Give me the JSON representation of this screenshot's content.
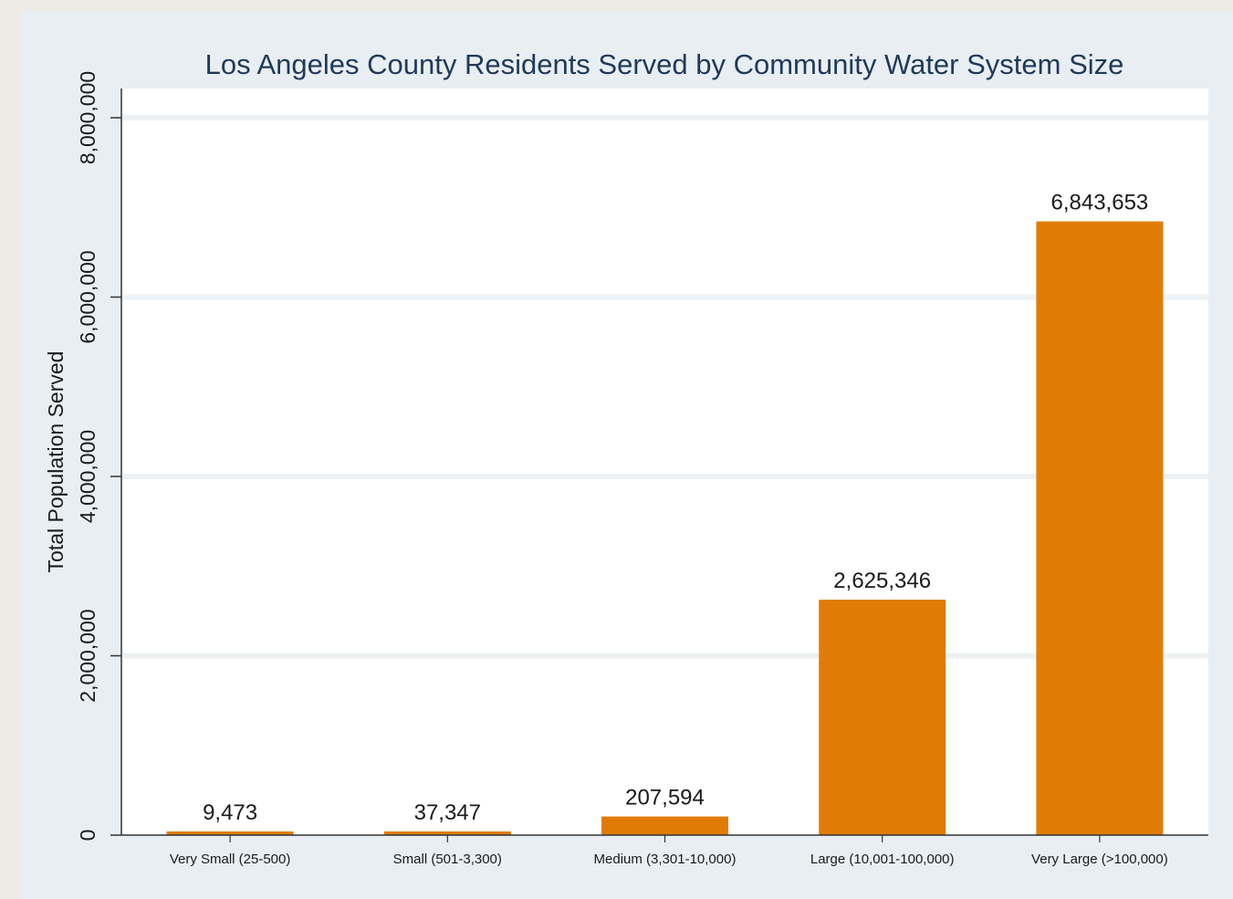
{
  "chart_data": {
    "type": "bar",
    "title": "Los Angeles County Residents Served by Community Water System Size",
    "xlabel": "",
    "ylabel": "Total Population Served",
    "categories": [
      "Very Small (25-500)",
      "Small (501-3,300)",
      "Medium (3,301-10,000)",
      "Large (10,001-100,000)",
      "Very Large (>100,000)"
    ],
    "values": [
      9473,
      37347,
      207594,
      2625346,
      6843653
    ],
    "data_labels": [
      "9,473",
      "37,347",
      "207,594",
      "2,625,346",
      "6,843,653"
    ],
    "ylim": [
      0,
      8000000
    ],
    "yticks": [
      0,
      2000000,
      4000000,
      6000000,
      8000000
    ],
    "ytick_labels": [
      "0",
      "2,000,000",
      "4,000,000",
      "6,000,000",
      "8,000,000"
    ],
    "grid": true,
    "legend": "none",
    "colors": {
      "bar": "#e07c06",
      "title": "#1f3a5a",
      "frame_background": "#e9eef2",
      "plot_background": "#ffffff",
      "gridline": "#eef1f3"
    }
  }
}
